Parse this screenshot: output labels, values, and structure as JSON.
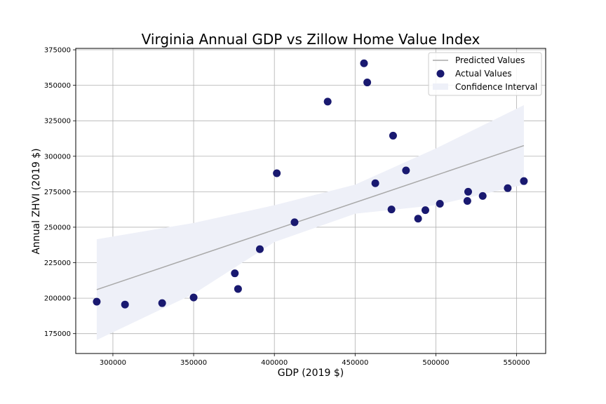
{
  "chart_data": {
    "type": "scatter",
    "title": "Virginia Annual GDP vs Zillow Home Value Index",
    "xlabel": "GDP (2019 $)",
    "ylabel": "Annual ZHVI (2019 $)",
    "xlim": [
      277000,
      568000
    ],
    "ylim": [
      161000,
      376000
    ],
    "xticks": [
      300000,
      350000,
      400000,
      450000,
      500000,
      550000
    ],
    "yticks": [
      175000,
      200000,
      225000,
      250000,
      275000,
      300000,
      325000,
      350000,
      375000
    ],
    "grid": true,
    "legend_position": "top-right",
    "legend": [
      "Predicted Values",
      "Actual Values",
      "Confidence Interval"
    ],
    "series": [
      {
        "name": "Actual Values",
        "kind": "scatter",
        "color": "#191970",
        "points": [
          {
            "x": 290000,
            "y": 197500
          },
          {
            "x": 307500,
            "y": 195500
          },
          {
            "x": 330500,
            "y": 196500
          },
          {
            "x": 350000,
            "y": 200500
          },
          {
            "x": 375500,
            "y": 217500
          },
          {
            "x": 377500,
            "y": 206500
          },
          {
            "x": 391000,
            "y": 234500
          },
          {
            "x": 401500,
            "y": 288000
          },
          {
            "x": 412500,
            "y": 253500
          },
          {
            "x": 433000,
            "y": 338500
          },
          {
            "x": 455500,
            "y": 365500
          },
          {
            "x": 457500,
            "y": 352000
          },
          {
            "x": 462500,
            "y": 281000
          },
          {
            "x": 472500,
            "y": 262500
          },
          {
            "x": 473500,
            "y": 314500
          },
          {
            "x": 481500,
            "y": 290000
          },
          {
            "x": 489000,
            "y": 256000
          },
          {
            "x": 493500,
            "y": 262000
          },
          {
            "x": 502500,
            "y": 266500
          },
          {
            "x": 519500,
            "y": 268500
          },
          {
            "x": 520000,
            "y": 275000
          },
          {
            "x": 529000,
            "y": 272000
          },
          {
            "x": 544500,
            "y": 277500
          },
          {
            "x": 554500,
            "y": 282500
          }
        ]
      },
      {
        "name": "Predicted Values",
        "kind": "line",
        "color": "#a9a9a9",
        "points": [
          {
            "x": 290000,
            "y": 206000
          },
          {
            "x": 554500,
            "y": 307500
          }
        ]
      },
      {
        "name": "Confidence Interval",
        "kind": "band",
        "color": "#eef0f8",
        "x": [
          290000,
          350000,
          400000,
          450000,
          500000,
          554500
        ],
        "lower": [
          170500,
          203000,
          239500,
          259500,
          265500,
          280000
        ],
        "upper": [
          241500,
          253000,
          265500,
          280000,
          305500,
          336000
        ]
      }
    ]
  }
}
